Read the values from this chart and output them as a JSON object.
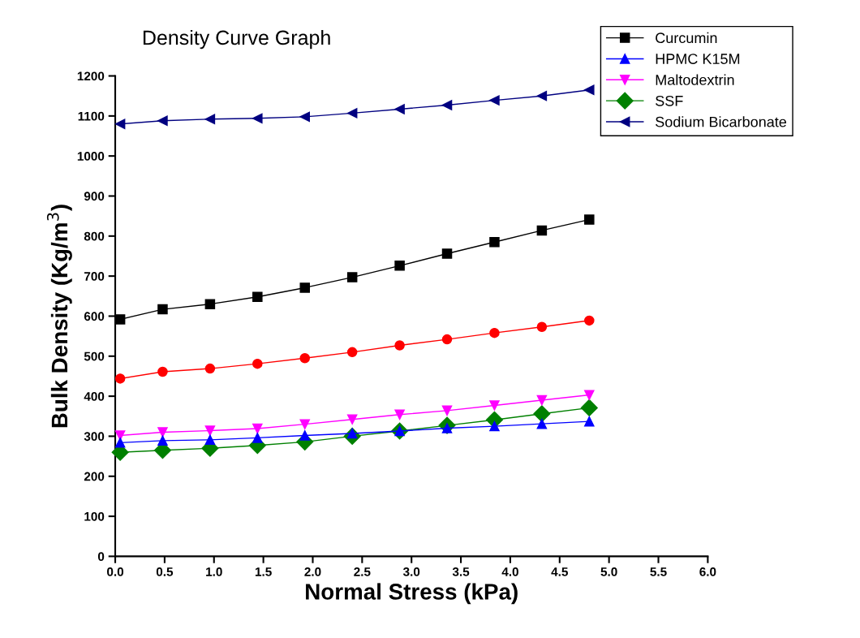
{
  "chart_data": {
    "type": "line",
    "title": "Density Curve Graph",
    "xlabel": "Normal Stress (kPa)",
    "ylabel": "Bulk Density (Kg/m$^{3}$)",
    "x": [
      0.05,
      0.48,
      0.96,
      1.44,
      1.92,
      2.4,
      2.88,
      3.36,
      3.84,
      4.32,
      4.8
    ],
    "series": [
      {
        "name": "Curcumin",
        "color": "#000000",
        "marker": "square",
        "values": [
          592,
          617,
          630,
          648,
          671,
          697,
          726,
          756,
          785,
          814,
          841
        ]
      },
      {
        "color": "#ff0000",
        "marker": "circle",
        "values": [
          444,
          461,
          469,
          481,
          495,
          510,
          527,
          542,
          558,
          573,
          589
        ]
      },
      {
        "name": "HPMC K15M",
        "color": "#0000ff",
        "marker": "triangle",
        "values": [
          284,
          289,
          291,
          296,
          302,
          307,
          313,
          320,
          325,
          331,
          337
        ]
      },
      {
        "name": "Maltodextrin",
        "color": "#ff00ff",
        "marker": "triangle_down",
        "values": [
          302,
          310,
          314,
          319,
          330,
          342,
          354,
          364,
          377,
          390,
          403
        ]
      },
      {
        "name": "SSF",
        "color": "#008000",
        "marker": "diamond",
        "values": [
          260,
          265,
          270,
          277,
          286,
          300,
          313,
          327,
          341,
          356,
          371
        ]
      },
      {
        "name": "Sodium Bicarbonate",
        "color": "#000080",
        "marker": "triangle_left",
        "values": [
          1080,
          1088,
          1092,
          1094,
          1098,
          1107,
          1117,
          1127,
          1139,
          1150,
          1165
        ]
      }
    ],
    "xlim": [
      0,
      6
    ],
    "xticks": [
      {
        "value": 0,
        "label": "0.0"
      },
      0.5,
      {
        "value": 1,
        "label": "1.0"
      },
      1.5,
      {
        "value": 2,
        "label": "2.0"
      },
      2.5,
      {
        "value": 3,
        "label": "3.0"
      },
      3.5,
      {
        "value": 4,
        "label": "4.0"
      },
      4.5,
      {
        "value": 5,
        "label": "5.0"
      },
      5.5,
      {
        "value": 6,
        "label": "6.0"
      }
    ],
    "ylim": [
      0,
      1200
    ],
    "yticks": [
      0,
      100,
      200,
      300,
      400,
      500,
      600,
      700,
      800,
      900,
      1000,
      1100,
      1200
    ],
    "grid": false,
    "legend": "top right",
    "line_style": "solid"
  }
}
